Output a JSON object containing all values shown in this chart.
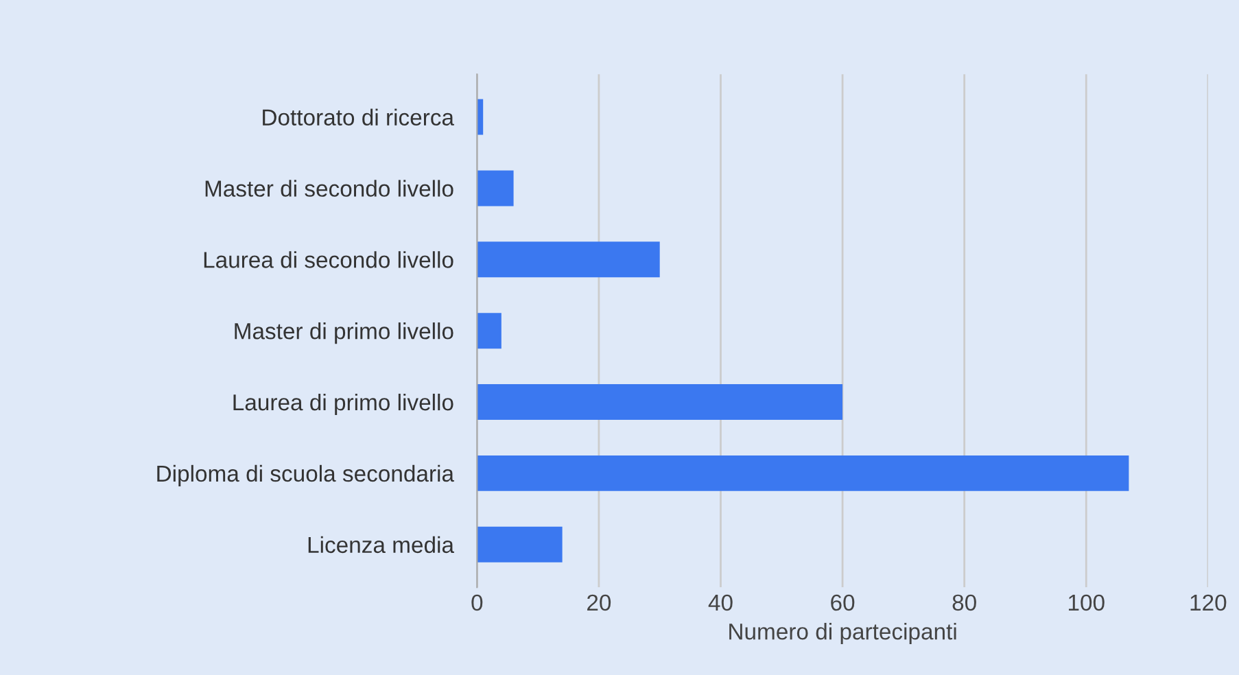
{
  "chart_data": {
    "type": "bar",
    "orientation": "horizontal",
    "xlabel": "Numero di partecipanti",
    "categories": [
      "Dottorato di ricerca",
      "Master di secondo livello",
      "Laurea di secondo livello",
      "Master di primo livello",
      "Laurea di primo livello",
      "Diploma di scuola secondaria",
      "Licenza media"
    ],
    "values": [
      1,
      6,
      30,
      4,
      60,
      107,
      14
    ],
    "color": "#3b78f0",
    "xlim": [
      0,
      120
    ],
    "xticks": [
      0,
      20,
      40,
      60,
      80,
      100,
      120
    ],
    "grid": "x",
    "legend": false
  }
}
